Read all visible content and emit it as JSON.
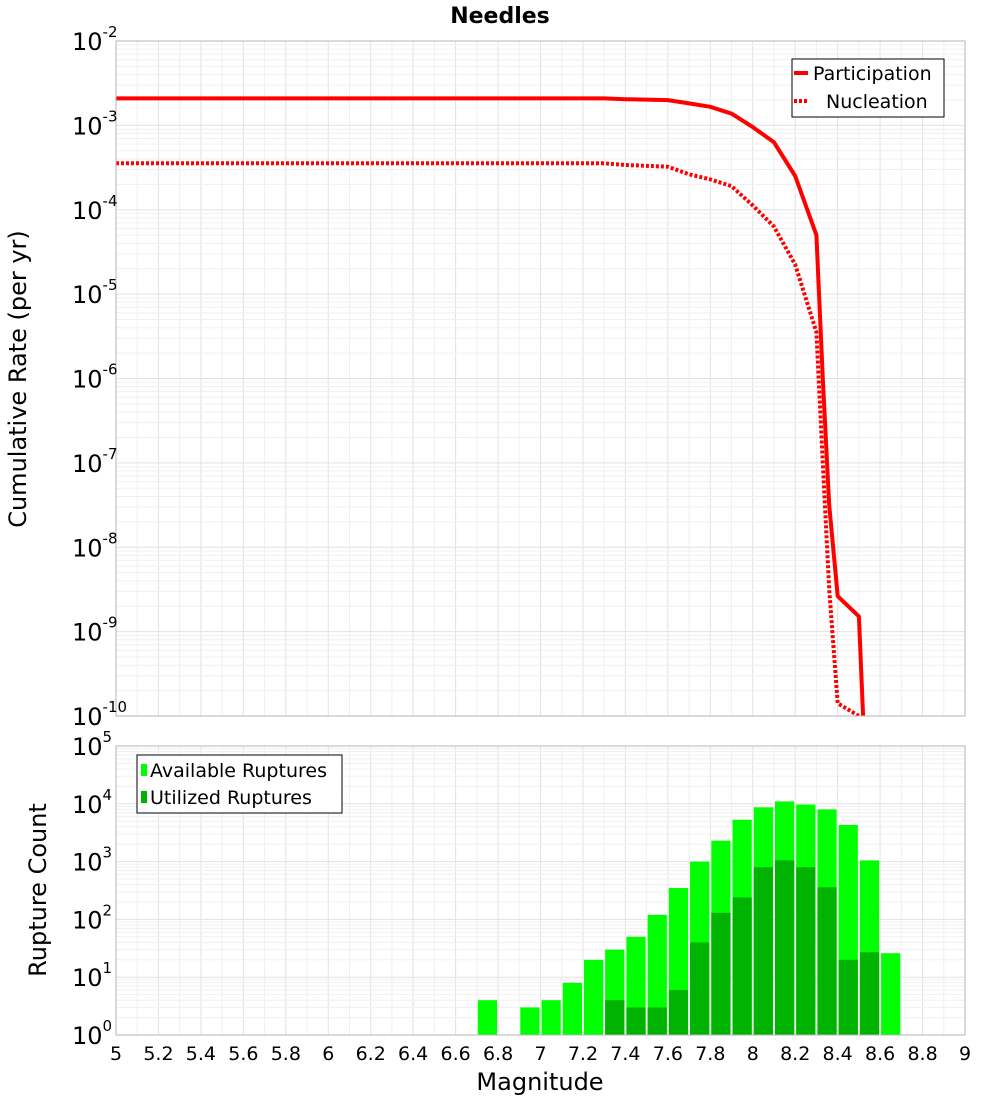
{
  "chart_data": [
    {
      "type": "line",
      "title": "Needles",
      "xlabel": "",
      "ylabel": "Cumulative Rate (per yr)",
      "yscale": "log",
      "xlim": [
        5,
        9
      ],
      "ylim_exp": [
        -10,
        -2
      ],
      "y_ticks": [
        {
          "base": "10",
          "exp": "-2",
          "value": -2
        },
        {
          "base": "10",
          "exp": "-3",
          "value": -3
        },
        {
          "base": "10",
          "exp": "-4",
          "value": -4
        },
        {
          "base": "10",
          "exp": "-5",
          "value": -5
        },
        {
          "base": "10",
          "exp": "-6",
          "value": -6
        },
        {
          "base": "10",
          "exp": "-7",
          "value": -7
        },
        {
          "base": "10",
          "exp": "-8",
          "value": -8
        },
        {
          "base": "10",
          "exp": "-9",
          "value": -9
        },
        {
          "base": "10",
          "exp": "-10",
          "value": -10
        }
      ],
      "legend": {
        "position": "top-right",
        "entries": [
          "Participation",
          "Nucleation"
        ]
      },
      "series": [
        {
          "name": "Participation",
          "color": "#ff0000",
          "style": "solid",
          "x": [
            5.0,
            7.3,
            7.4,
            7.6,
            7.7,
            7.8,
            7.9,
            8.0,
            8.1,
            8.2,
            8.3,
            8.33,
            8.36,
            8.4,
            8.5,
            8.52
          ],
          "log_y": [
            -2.68,
            -2.68,
            -2.69,
            -2.7,
            -2.74,
            -2.78,
            -2.86,
            -3.02,
            -3.2,
            -3.6,
            -4.3,
            -6.0,
            -7.5,
            -8.58,
            -8.82,
            -10.0
          ]
        },
        {
          "name": "Nucleation",
          "color": "#ff0000",
          "style": "dotted",
          "x": [
            5.0,
            7.3,
            7.4,
            7.6,
            7.7,
            7.8,
            7.9,
            8.0,
            8.1,
            8.2,
            8.3,
            8.33,
            8.36,
            8.4,
            8.5
          ],
          "log_y": [
            -3.45,
            -3.45,
            -3.47,
            -3.49,
            -3.58,
            -3.64,
            -3.72,
            -3.95,
            -4.2,
            -4.65,
            -5.45,
            -7.0,
            -8.5,
            -9.85,
            -10.0
          ]
        }
      ]
    },
    {
      "type": "bar",
      "title": "",
      "xlabel": "Magnitude",
      "ylabel": "Rupture Count",
      "yscale": "log",
      "xlim": [
        5,
        9
      ],
      "ylim_exp": [
        0,
        5
      ],
      "bin_width": 0.1,
      "x_ticks": [
        "5",
        "5.2",
        "5.4",
        "5.6",
        "5.8",
        "6",
        "6.2",
        "6.4",
        "6.6",
        "6.8",
        "7",
        "7.2",
        "7.4",
        "7.6",
        "7.8",
        "8",
        "8.2",
        "8.4",
        "8.6",
        "8.8",
        "9"
      ],
      "y_ticks": [
        {
          "base": "10",
          "exp": "0",
          "value": 0
        },
        {
          "base": "10",
          "exp": "1",
          "value": 1
        },
        {
          "base": "10",
          "exp": "2",
          "value": 2
        },
        {
          "base": "10",
          "exp": "3",
          "value": 3
        },
        {
          "base": "10",
          "exp": "4",
          "value": 4
        },
        {
          "base": "10",
          "exp": "5",
          "value": 5
        }
      ],
      "legend": {
        "position": "top-left",
        "entries": [
          "Available Ruptures",
          "Utilized Ruptures"
        ]
      },
      "series": [
        {
          "name": "Available Ruptures",
          "color": "#00ff00",
          "bin_centers": [
            6.75,
            6.95,
            7.05,
            7.15,
            7.25,
            7.35,
            7.45,
            7.55,
            7.65,
            7.75,
            7.85,
            7.95,
            8.05,
            8.15,
            8.25,
            8.35,
            8.45,
            8.55,
            8.65
          ],
          "values": [
            4,
            3,
            4,
            8,
            20,
            30,
            50,
            120,
            350,
            1000,
            2300,
            5300,
            8700,
            11000,
            9700,
            8000,
            4300,
            1050,
            26
          ]
        },
        {
          "name": "Utilized Ruptures",
          "color": "#00b300",
          "bin_centers": [
            7.35,
            7.45,
            7.55,
            7.65,
            7.75,
            7.85,
            7.95,
            8.05,
            8.15,
            8.25,
            8.35,
            8.45,
            8.55
          ],
          "values": [
            4,
            3,
            3,
            6,
            40,
            130,
            240,
            800,
            1050,
            800,
            360,
            20,
            27
          ]
        }
      ]
    }
  ]
}
